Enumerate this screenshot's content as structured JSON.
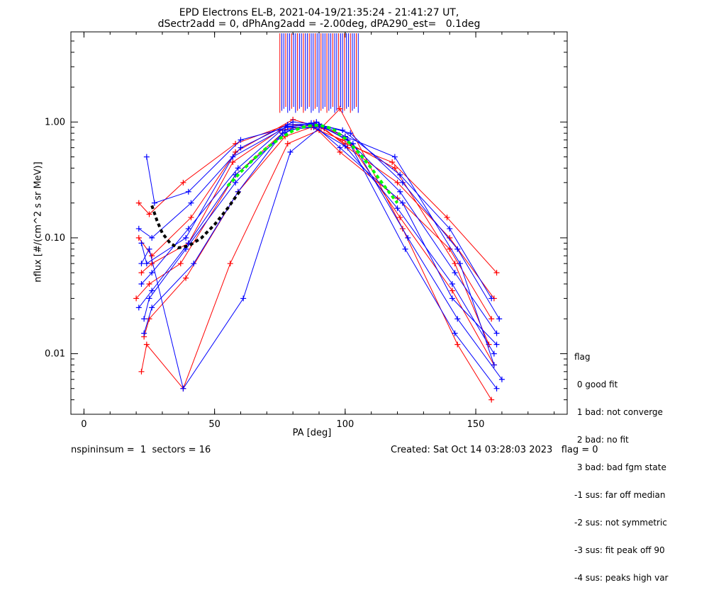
{
  "title": {
    "line1": "EPD Electrons EL-B, 2021-04-19/21:35:24 - 21:41:27 UT,",
    "line2": "dSectr2add = 0, dPhAng2add = -2.00deg, dPA290_est=   0.1deg"
  },
  "legend": {
    "header": "flag",
    "items": [
      " 0 good fit",
      " 1 bad: not converge",
      " 2 bad: no fit",
      " 3 bad: bad fgm state",
      "-1 sus: far off median",
      "-2 sus: not symmetric",
      "-3 sus: fit peak off 90",
      "-4 sus: peaks high var"
    ]
  },
  "footer": {
    "left": "nspininsum =  1  sectors = 16",
    "right": "Created: Sat Oct 14 03:28:03 2023   flag = 0"
  },
  "colors": {
    "red": "#ff0000",
    "blue": "#0000ff",
    "green": "#00ff00",
    "black": "#000000"
  },
  "chart_data": {
    "type": "line",
    "xlabel": "PA [deg]",
    "ylabel": "nflux [#/(cm^2 s sr MeV)]",
    "xlim": [
      -5,
      185
    ],
    "ylim": [
      0.003,
      6.0
    ],
    "yscale": "log",
    "xticks": [
      0,
      50,
      100,
      150
    ],
    "yticks": [
      0.01,
      0.1,
      1.0
    ],
    "ytick_labels": [
      "0.01",
      "0.10",
      "1.00"
    ],
    "grid": false,
    "approximate": true,
    "series": [
      {
        "color": "red",
        "x": [
          21,
          25,
          38,
          58,
          78,
          88,
          98,
          120,
          140,
          156
        ],
        "y": [
          0.2,
          0.16,
          0.3,
          0.65,
          0.95,
          0.92,
          0.55,
          0.22,
          0.08,
          0.02
        ]
      },
      {
        "color": "red",
        "x": [
          22,
          26,
          40,
          57,
          75,
          89,
          100,
          121,
          141,
          157
        ],
        "y": [
          0.05,
          0.06,
          0.09,
          0.45,
          0.85,
          0.95,
          0.75,
          0.15,
          0.035,
          0.008
        ]
      },
      {
        "color": "red",
        "x": [
          23,
          25,
          39,
          59,
          77,
          87,
          99,
          119,
          142,
          155
        ],
        "y": [
          0.014,
          0.02,
          0.045,
          0.25,
          0.75,
          0.9,
          0.7,
          0.4,
          0.06,
          0.012
        ]
      },
      {
        "color": "red",
        "x": [
          21,
          26,
          41,
          58,
          80,
          92,
          101,
          120,
          140,
          157
        ],
        "y": [
          0.1,
          0.07,
          0.15,
          0.55,
          1.05,
          0.88,
          0.6,
          0.3,
          0.1,
          0.03
        ]
      },
      {
        "color": "red",
        "x": [
          22,
          24,
          38,
          56,
          78,
          90,
          98,
          122,
          143,
          156
        ],
        "y": [
          0.007,
          0.012,
          0.005,
          0.06,
          0.65,
          0.85,
          1.3,
          0.12,
          0.012,
          0.004
        ]
      },
      {
        "color": "red",
        "x": [
          20,
          25,
          37,
          58,
          76,
          88,
          100,
          118,
          139,
          158
        ],
        "y": [
          0.03,
          0.04,
          0.06,
          0.35,
          0.8,
          0.98,
          0.65,
          0.45,
          0.15,
          0.05
        ]
      },
      {
        "color": "blue",
        "x": [
          22,
          26,
          40,
          59,
          78,
          89,
          101,
          121,
          142,
          158
        ],
        "y": [
          0.04,
          0.05,
          0.12,
          0.4,
          0.95,
          0.96,
          0.7,
          0.25,
          0.05,
          0.015
        ]
      },
      {
        "color": "blue",
        "x": [
          23,
          25,
          39,
          58,
          77,
          88,
          100,
          120,
          141,
          157
        ],
        "y": [
          0.02,
          0.03,
          0.08,
          0.3,
          0.85,
          0.9,
          0.62,
          0.18,
          0.04,
          0.01
        ]
      },
      {
        "color": "blue",
        "x": [
          21,
          26,
          41,
          60,
          80,
          90,
          102,
          122,
          143,
          159
        ],
        "y": [
          0.12,
          0.1,
          0.2,
          0.6,
          1.0,
          0.95,
          0.8,
          0.3,
          0.08,
          0.02
        ]
      },
      {
        "color": "blue",
        "x": [
          24,
          27,
          40,
          60,
          78,
          87,
          99,
          121,
          140,
          156
        ],
        "y": [
          0.5,
          0.2,
          0.25,
          0.7,
          0.9,
          0.98,
          0.85,
          0.35,
          0.12,
          0.03
        ]
      },
      {
        "color": "blue",
        "x": [
          22,
          25,
          38,
          61,
          79,
          91,
          101,
          123,
          142,
          158
        ],
        "y": [
          0.06,
          0.08,
          0.005,
          0.03,
          0.55,
          0.92,
          0.7,
          0.08,
          0.015,
          0.005
        ]
      },
      {
        "color": "blue",
        "x": [
          23,
          26,
          42,
          59,
          76,
          89,
          100,
          119,
          144,
          157
        ],
        "y": [
          0.015,
          0.025,
          0.06,
          0.25,
          0.8,
          1.0,
          0.75,
          0.5,
          0.06,
          0.008
        ]
      },
      {
        "color": "blue",
        "x": [
          22,
          24,
          39,
          57,
          78,
          88,
          98,
          122,
          141,
          158
        ],
        "y": [
          0.09,
          0.06,
          0.1,
          0.5,
          0.92,
          0.94,
          0.6,
          0.2,
          0.03,
          0.012
        ]
      },
      {
        "color": "blue",
        "x": [
          21,
          26,
          40,
          58,
          80,
          92,
          103,
          124,
          143,
          160
        ],
        "y": [
          0.025,
          0.035,
          0.09,
          0.35,
          0.9,
          0.9,
          0.65,
          0.1,
          0.02,
          0.006
        ]
      }
    ],
    "fit_curves": [
      {
        "color": "green",
        "style": "dashed",
        "x": [
          55,
          60,
          65,
          70,
          75,
          80,
          85,
          90,
          95,
          100,
          105,
          110,
          115,
          120
        ],
        "y": [
          0.28,
          0.37,
          0.48,
          0.6,
          0.72,
          0.84,
          0.92,
          0.94,
          0.88,
          0.72,
          0.55,
          0.4,
          0.28,
          0.2
        ]
      },
      {
        "color": "black",
        "style": "dashed",
        "x": [
          26,
          28,
          30,
          33,
          36,
          40,
          45,
          50,
          55,
          60
        ],
        "y": [
          0.19,
          0.14,
          0.11,
          0.09,
          0.082,
          0.085,
          0.1,
          0.13,
          0.18,
          0.26
        ]
      }
    ],
    "vertical_lines_range_deg": [
      75,
      105
    ]
  }
}
